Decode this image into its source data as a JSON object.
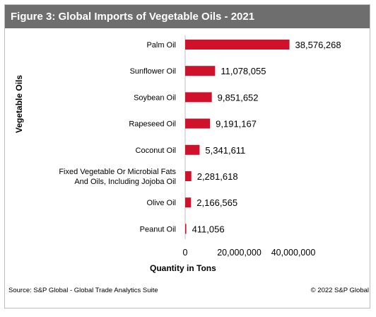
{
  "title": "Figure 3: Global Imports of Vegetable Oils - 2021",
  "source": "Source: S&P Global - Global Trade Analytics Suite",
  "copyright": "© 2022 S&P Global",
  "colors": {
    "bar": "#d0112b",
    "title_bg": "#6e6e6e"
  },
  "chart_data": {
    "type": "bar",
    "orientation": "horizontal",
    "xlabel": "Quantity in Tons",
    "ylabel": "Vegetable Oils",
    "xlim": [
      0,
      40000000
    ],
    "xticks": [
      "0",
      "20,000,000",
      "40,000,000"
    ],
    "grid": false,
    "categories": [
      [
        "Palm Oil"
      ],
      [
        "Sunflower Oil"
      ],
      [
        "Soybean Oil"
      ],
      [
        "Rapeseed Oil"
      ],
      [
        "Coconut Oil"
      ],
      [
        "Fixed Vegetable Or Microbial Fats",
        "And Oils, Including Jojoba Oil"
      ],
      [
        "Olive Oil"
      ],
      [
        "Peanut Oil"
      ]
    ],
    "values": [
      38576268,
      11078055,
      9851652,
      9191167,
      5341611,
      2281618,
      2166565,
      411056
    ],
    "value_labels": [
      "38,576,268",
      "11,078,055",
      "9,851,652",
      "9,191,167",
      "5,341,611",
      "2,281,618",
      "2,166,565",
      "411,056"
    ]
  }
}
